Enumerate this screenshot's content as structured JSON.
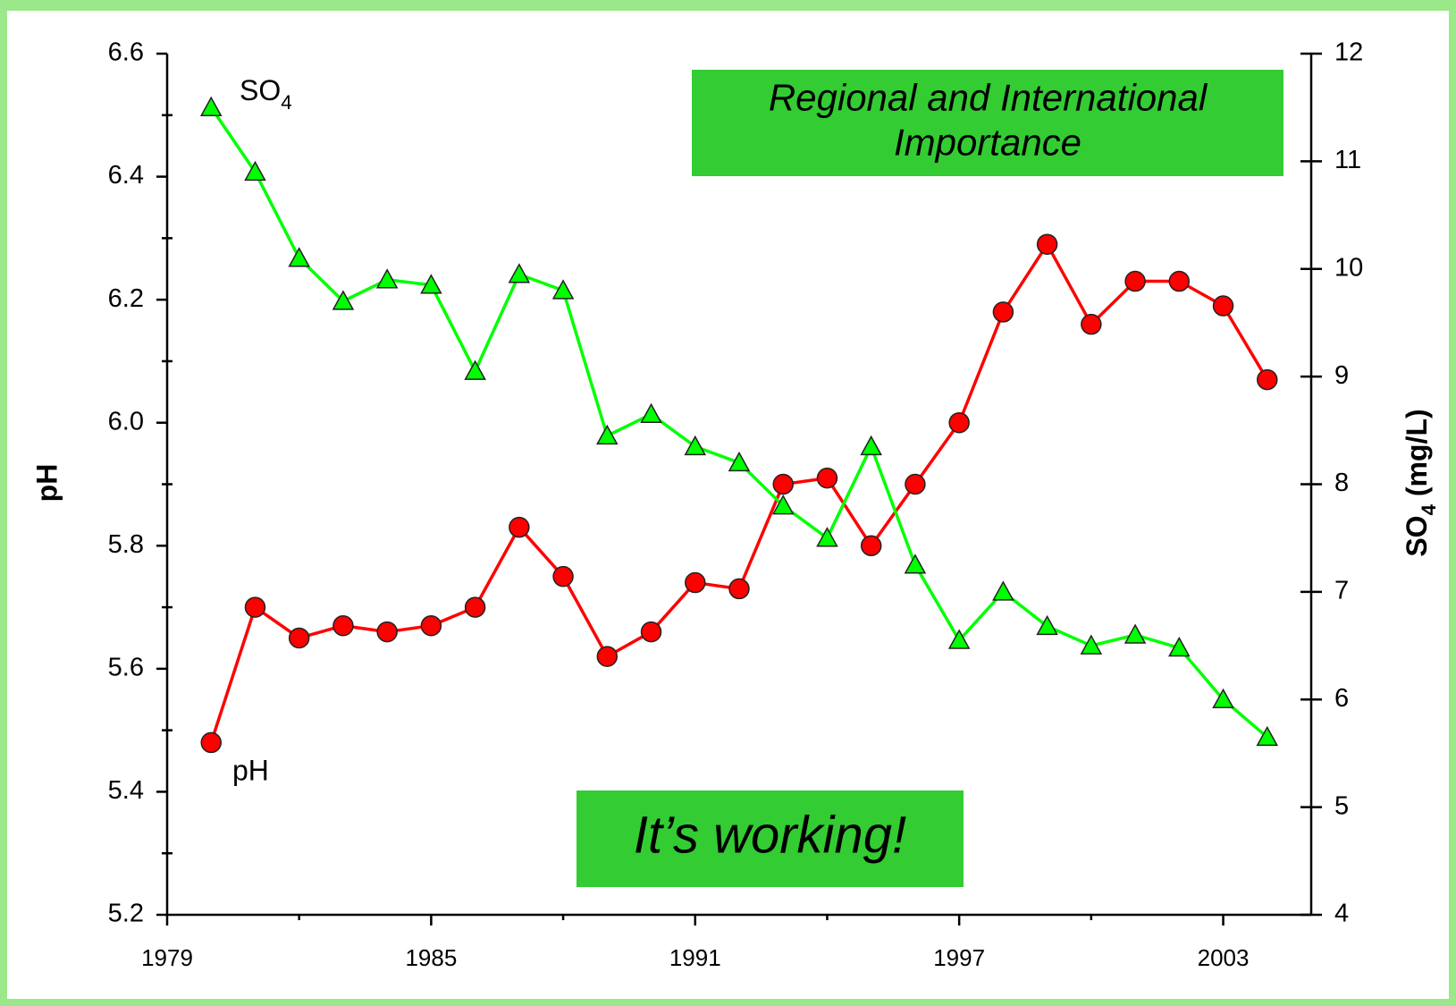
{
  "chart_data": {
    "type": "line",
    "x": [
      1980,
      1981,
      1982,
      1983,
      1984,
      1985,
      1986,
      1987,
      1988,
      1989,
      1990,
      1991,
      1992,
      1993,
      1994,
      1995,
      1996,
      1997,
      1998,
      1999,
      2000,
      2001,
      2002,
      2003,
      2004
    ],
    "series": [
      {
        "name": "pH",
        "color": "#ff0000",
        "marker": "circle",
        "values": [
          5.48,
          5.7,
          5.65,
          5.67,
          5.66,
          5.67,
          5.7,
          5.83,
          5.75,
          5.62,
          5.66,
          5.74,
          5.73,
          5.9,
          5.91,
          5.8,
          5.9,
          6.0,
          6.18,
          6.29,
          6.16,
          6.23,
          6.23,
          6.19,
          6.07
        ]
      },
      {
        "name": "SO4",
        "color": "#00ff00",
        "marker": "triangle",
        "axis": "y2",
        "values": [
          11.5,
          10.9,
          10.1,
          9.7,
          9.9,
          9.85,
          9.05,
          9.95,
          9.8,
          8.45,
          8.65,
          8.35,
          8.2,
          7.8,
          7.5,
          8.35,
          7.25,
          6.55,
          7.0,
          6.68,
          6.5,
          6.6,
          6.48,
          6.0,
          5.65
        ]
      }
    ],
    "ylabel": "pH",
    "y2label": "SO4 (mg/L)",
    "xlim": [
      1979,
      2005
    ],
    "xticks": [
      1979,
      1985,
      1991,
      1997,
      2003
    ],
    "ylim": [
      5.2,
      6.6
    ],
    "yticks": [
      5.2,
      5.4,
      5.6,
      5.8,
      {
        "value": 6,
        "label": "6.0"
      },
      6.2,
      6.4,
      6.6
    ],
    "y2lim": [
      4,
      12
    ],
    "y2ticks": [
      4,
      5,
      6,
      7,
      8,
      9,
      10,
      11,
      12
    ],
    "annotations": [
      {
        "lines": [
          "Regional and International",
          "Importance"
        ]
      },
      {
        "lines": [
          "It’s working!"
        ]
      }
    ]
  }
}
